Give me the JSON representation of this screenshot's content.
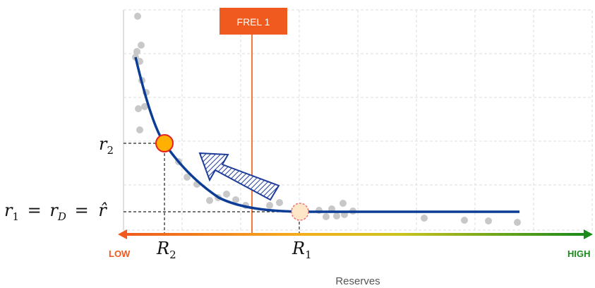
{
  "labels": {
    "frel": "FREL 1",
    "low": "LOW",
    "high": "HIGH",
    "x_axis": "Reserves",
    "r2_sym": "r",
    "r2_sub": "2",
    "R2_sym": "R",
    "R2_sub": "2",
    "R1_sym": "R",
    "R1_sub": "1",
    "r1_a": "r",
    "r1_a_sub": "1",
    "r1_eq1": "=",
    "r1_b": "r",
    "r1_b_sub": "D",
    "r1_eq2": "=",
    "r1_hat": "r̂"
  },
  "colors": {
    "curve": "#0b3c96",
    "frel_line": "#f07838",
    "frel_box": "#f05a1e",
    "low": "#f05a1e",
    "high": "#1a8a1a",
    "point_r2_fill": "#ffb000",
    "point_r2_stroke": "#e32222",
    "point_r1_fill": "#fde7c8",
    "point_r1_stroke": "#f07070",
    "scatter": "#c8c8c8",
    "grid": "#dddddd",
    "arrow": "#1e3c9a"
  }
}
